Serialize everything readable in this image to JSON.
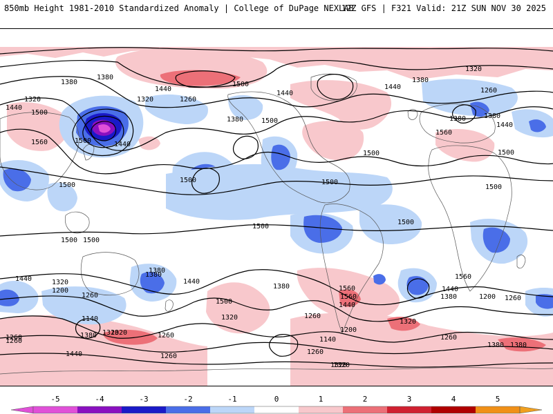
{
  "header": {
    "title": "850mb Height 1981-2010 Standardized Anomaly | College of DuPage NEXLAB",
    "run_info": "12Z GFS | F321 Valid: 21Z SUN NOV 30 2025"
  },
  "colors": {
    "neg5": "#e050d8",
    "neg4": "#8a10c0",
    "neg3": "#1a1ac8",
    "neg2": "#4a6ee8",
    "neg1": "#bcd6f8",
    "pos1": "#f8c8cc",
    "pos2": "#ec7078",
    "pos3": "#d02030",
    "pos4": "#b00000",
    "pos5": "#f09018"
  },
  "colorbar": {
    "ticks": [
      "-5",
      "-4",
      "-3",
      "-2",
      "-1",
      "0",
      "1",
      "2",
      "3",
      "4",
      "5"
    ]
  },
  "contour_labels": [
    "1380",
    "1320",
    "1440",
    "1500",
    "1560",
    "1260",
    "1500",
    "1440",
    "1380",
    "1320",
    "1500",
    "1440",
    "1380",
    "1500",
    "1500",
    "1500",
    "1500",
    "1500",
    "1500",
    "1500",
    "1440",
    "1380",
    "1320",
    "1260",
    "1200",
    "1140",
    "1380",
    "1260",
    "1320",
    "1440",
    "1500",
    "1380",
    "1260",
    "1200",
    "1140",
    "1260",
    "1320",
    "1440",
    "1560",
    "1320",
    "1440",
    "1380",
    "1200",
    "1260",
    "1440",
    "1380",
    "1560",
    "1380",
    "1320",
    "1260",
    "1560",
    "1440",
    "1500",
    "1500",
    "1500",
    "1380",
    "1320",
    "1260",
    "1440",
    "1380",
    "1260",
    "1380",
    "1320",
    "1260",
    "1320",
    "1260",
    "1380",
    "1440",
    "1500",
    "1560"
  ]
}
